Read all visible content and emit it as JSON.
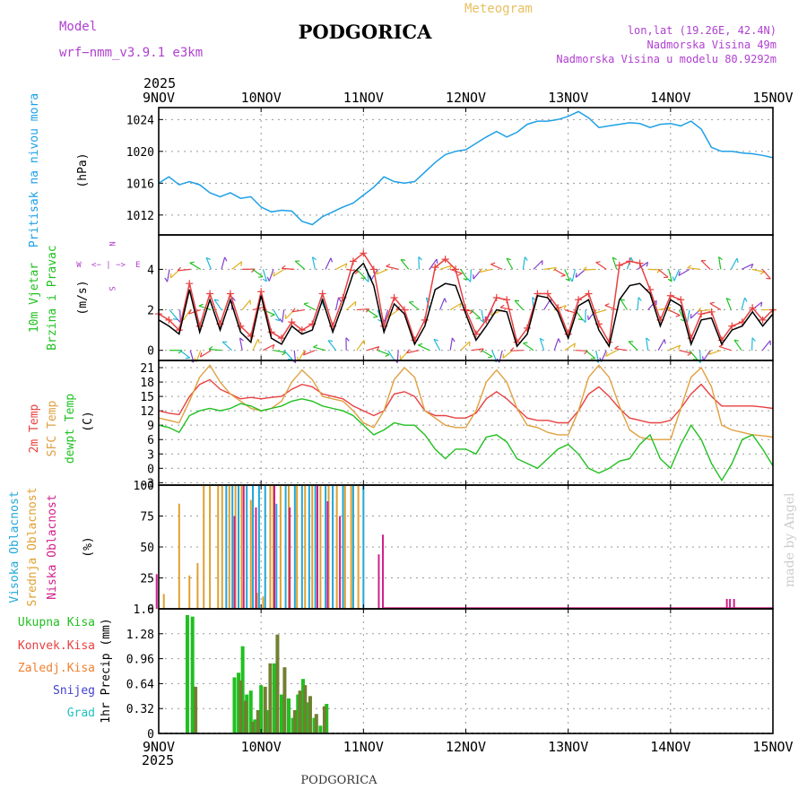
{
  "header": {
    "model_label": "Model",
    "model_name": "wrf−nmm_v3.9.1  e3km",
    "title": "PODGORICA",
    "meteogram_label": "Meteogram",
    "lonlat": "lon,lat (19.26E, 42.4N)",
    "elevation": "Nadmorska Visina 49m",
    "model_elevation": "Nadmorska Visina u modelu 80.9292m",
    "year_top": "2025",
    "year_bottom": "2025",
    "footer_title": "PODGORICA",
    "watermark": "made by Angel"
  },
  "panel_labels": {
    "pressure": {
      "name": "Pritisak na nivou mora",
      "unit": "(hPa)"
    },
    "wind": {
      "name1": "10m Vjetar",
      "name2": "Brzina i Pravac",
      "unit": "(m/s)",
      "compass": {
        "n": "N",
        "e": "E",
        "w": "W",
        "s": "S",
        "arrows": "<− | −>"
      }
    },
    "temp": {
      "l1": "2m Temp",
      "l2": "SFC Temp",
      "l3": "dewpt Temp",
      "unit": "(C)"
    },
    "cloud": {
      "l1": "Visoka Oblacnost",
      "l2": "Srednja Oblacnost",
      "l3": "Niska Oblacnost",
      "unit": "(%)"
    },
    "precip": {
      "l1": "Ukupna Kisa",
      "l2": "Konvek.Kisa",
      "l3": "Zaledj.Kisa",
      "l4": "Snijeg",
      "l5": "Grad",
      "unit": "1hr Precip (mm)"
    }
  },
  "colors": {
    "pressure": "#1ea0e6",
    "wind_black": "#000000",
    "wind_red": "#e84040",
    "t2m": "#e84040",
    "sfc": "#e0a040",
    "dewpt": "#20c020",
    "cl_high": "#20a8d8",
    "cl_mid": "#e0a030",
    "cl_low": "#d0208a",
    "total": "#20c020",
    "convective": "#e84040",
    "freezing": "#f08030",
    "snow": "#4040d0",
    "hail": "#20c0c0",
    "purple": "#b040d0",
    "gold": "#e8c060"
  },
  "chart_data": [
    {
      "type": "line",
      "id": "pressure",
      "ylabel": "(hPa)",
      "ylim": [
        1009.5,
        1025.5
      ],
      "yticks": [
        1012,
        1016,
        1020,
        1024
      ],
      "xticks": [
        "9NOV",
        "10NOV",
        "11NOV",
        "12NOV",
        "13NOV",
        "14NOV",
        "15NOV"
      ],
      "x": [
        0,
        0.1,
        0.2,
        0.3,
        0.4,
        0.5,
        0.6,
        0.7,
        0.8,
        0.9,
        1.0,
        1.1,
        1.2,
        1.3,
        1.4,
        1.5,
        1.6,
        1.7,
        1.8,
        1.9,
        2.0,
        2.1,
        2.2,
        2.3,
        2.4,
        2.5,
        2.6,
        2.7,
        2.8,
        2.9,
        3.0,
        3.1,
        3.2,
        3.3,
        3.4,
        3.5,
        3.6,
        3.7,
        3.8,
        3.9,
        4.0,
        4.1,
        4.2,
        4.3,
        4.4,
        4.5,
        4.6,
        4.7,
        4.8,
        4.9,
        5.0,
        5.1,
        5.2,
        5.3,
        5.4,
        5.5,
        5.6,
        5.7,
        5.8,
        5.9,
        6.0
      ],
      "values": [
        1016.0,
        1016.8,
        1015.8,
        1016.2,
        1015.8,
        1014.8,
        1014.3,
        1014.8,
        1014.1,
        1014.3,
        1013.0,
        1012.4,
        1012.6,
        1012.5,
        1011.2,
        1010.8,
        1011.8,
        1012.4,
        1013.0,
        1013.5,
        1014.5,
        1015.5,
        1016.8,
        1016.2,
        1016.0,
        1016.2,
        1017.4,
        1018.6,
        1019.6,
        1020.0,
        1020.2,
        1021.0,
        1021.8,
        1022.5,
        1021.8,
        1022.4,
        1023.4,
        1023.8,
        1023.8,
        1024.0,
        1024.4,
        1025.0,
        1024.2,
        1023.0,
        1023.2,
        1023.4,
        1023.6,
        1023.5,
        1023.0,
        1023.4,
        1023.5,
        1023.2,
        1023.8,
        1022.8,
        1020.5,
        1020.0,
        1020.0,
        1019.8,
        1019.7,
        1019.5,
        1019.2
      ]
    },
    {
      "type": "line",
      "id": "wind",
      "ylabel": "(m/s)",
      "ylim": [
        -0.5,
        5.7
      ],
      "yticks": [
        0,
        2,
        4
      ],
      "xticks": [
        "9NOV",
        "10NOV",
        "11NOV",
        "12NOV",
        "13NOV",
        "14NOV",
        "15NOV"
      ],
      "x": [
        0,
        0.1,
        0.2,
        0.3,
        0.4,
        0.5,
        0.6,
        0.7,
        0.8,
        0.9,
        1.0,
        1.1,
        1.2,
        1.3,
        1.4,
        1.5,
        1.6,
        1.7,
        1.8,
        1.9,
        2.0,
        2.1,
        2.2,
        2.3,
        2.4,
        2.5,
        2.6,
        2.7,
        2.8,
        2.9,
        3.0,
        3.1,
        3.2,
        3.3,
        3.4,
        3.5,
        3.6,
        3.7,
        3.8,
        3.9,
        4.0,
        4.1,
        4.2,
        4.3,
        4.4,
        4.5,
        4.6,
        4.7,
        4.8,
        4.9,
        5.0,
        5.1,
        5.2,
        5.3,
        5.4,
        5.5,
        5.6,
        5.7,
        5.8,
        5.9,
        6.0
      ],
      "series": [
        {
          "name": "mean",
          "values": [
            1.5,
            1.2,
            0.8,
            3.0,
            0.9,
            2.5,
            1.0,
            2.5,
            0.9,
            0.4,
            2.7,
            0.6,
            0.3,
            1.2,
            0.8,
            1.0,
            2.5,
            0.9,
            2.3,
            3.8,
            4.3,
            3.2,
            0.9,
            2.3,
            1.8,
            0.3,
            1.2,
            3.0,
            3.3,
            3.2,
            1.8,
            0.5,
            1.2,
            2.0,
            1.9,
            0.2,
            0.8,
            2.7,
            2.6,
            1.9,
            0.6,
            2.2,
            2.5,
            1.0,
            0.2,
            2.5,
            3.2,
            3.3,
            2.8,
            1.2,
            2.5,
            2.2,
            0.3,
            1.5,
            1.6,
            0.3,
            1.0,
            1.2,
            1.9,
            1.2,
            1.8
          ]
        },
        {
          "name": "gust",
          "values": [
            1.8,
            1.5,
            1.0,
            3.3,
            1.2,
            2.8,
            1.3,
            2.8,
            1.2,
            0.7,
            2.9,
            0.9,
            0.6,
            1.4,
            1.0,
            1.3,
            2.8,
            1.2,
            2.6,
            4.4,
            4.8,
            4.0,
            1.2,
            2.6,
            2.0,
            0.5,
            1.5,
            4.1,
            4.5,
            4.0,
            2.0,
            0.8,
            1.5,
            2.6,
            2.5,
            0.4,
            1.1,
            2.8,
            2.8,
            2.1,
            0.8,
            2.5,
            2.8,
            1.3,
            0.4,
            4.2,
            4.4,
            4.3,
            3.0,
            1.5,
            2.7,
            2.5,
            0.6,
            1.8,
            1.9,
            0.5,
            1.2,
            1.4,
            2.1,
            1.5,
            2.0
          ]
        }
      ]
    },
    {
      "type": "line",
      "id": "temperature",
      "ylabel": "(C)",
      "ylim": [
        -3.5,
        22.5
      ],
      "yticks": [
        -3,
        0,
        3,
        6,
        9,
        12,
        15,
        18,
        21
      ],
      "xticks": [
        "9NOV",
        "10NOV",
        "11NOV",
        "12NOV",
        "13NOV",
        "14NOV",
        "15NOV"
      ],
      "x": [
        0,
        0.1,
        0.2,
        0.3,
        0.4,
        0.5,
        0.6,
        0.7,
        0.8,
        0.9,
        1.0,
        1.1,
        1.2,
        1.3,
        1.4,
        1.5,
        1.6,
        1.7,
        1.8,
        1.9,
        2.0,
        2.1,
        2.2,
        2.3,
        2.4,
        2.5,
        2.6,
        2.7,
        2.8,
        2.9,
        3.0,
        3.1,
        3.2,
        3.3,
        3.4,
        3.5,
        3.6,
        3.7,
        3.8,
        3.9,
        4.0,
        4.1,
        4.2,
        4.3,
        4.4,
        4.5,
        4.6,
        4.7,
        4.8,
        4.9,
        5.0,
        5.1,
        5.2,
        5.3,
        5.4,
        5.5,
        5.6,
        5.7,
        5.8,
        5.9,
        6.0
      ],
      "series": [
        {
          "name": "2m Temp",
          "values": [
            12.0,
            11.5,
            11.2,
            15.0,
            17.5,
            18.5,
            16.5,
            15.5,
            14.5,
            14.8,
            14.5,
            14.8,
            15.0,
            16.5,
            17.5,
            17.0,
            15.5,
            15.0,
            14.5,
            13.0,
            12.0,
            11.0,
            12.0,
            15.5,
            16.0,
            15.0,
            12.0,
            11.0,
            11.0,
            10.5,
            10.5,
            11.5,
            14.5,
            16.0,
            14.5,
            12.5,
            10.5,
            10.0,
            10.0,
            9.5,
            9.5,
            12.0,
            15.5,
            17.0,
            15.0,
            12.5,
            10.5,
            10.0,
            9.5,
            9.5,
            10.0,
            12.5,
            15.5,
            17.5,
            15.0,
            13.0,
            13.0,
            13.0,
            13.0,
            12.8,
            12.5
          ]
        },
        {
          "name": "SFC Temp",
          "values": [
            10.5,
            10.0,
            9.5,
            14.0,
            19.0,
            21.5,
            18.0,
            15.5,
            14.0,
            12.5,
            12.0,
            12.5,
            14.0,
            18.0,
            20.5,
            18.5,
            15.0,
            14.5,
            14.0,
            12.0,
            9.5,
            8.5,
            12.0,
            18.5,
            21.0,
            19.0,
            12.0,
            10.5,
            9.0,
            8.5,
            8.5,
            12.0,
            18.0,
            20.5,
            18.0,
            12.5,
            9.0,
            8.5,
            7.5,
            7.0,
            7.0,
            12.0,
            19.0,
            21.5,
            19.0,
            13.0,
            8.0,
            6.5,
            6.0,
            6.0,
            6.0,
            12.5,
            19.0,
            21.0,
            17.0,
            9.0,
            8.0,
            7.5,
            7.0,
            6.8,
            6.5
          ]
        },
        {
          "name": "dewpt Temp",
          "values": [
            9.0,
            8.5,
            7.5,
            11.0,
            12.0,
            12.5,
            12.0,
            12.5,
            13.5,
            13.0,
            12.0,
            12.5,
            13.0,
            14.0,
            14.5,
            14.0,
            13.0,
            12.5,
            12.0,
            11.0,
            9.0,
            7.0,
            8.0,
            9.5,
            9.0,
            9.0,
            7.0,
            4.0,
            2.0,
            4.0,
            4.0,
            3.0,
            6.5,
            7.0,
            5.5,
            2.0,
            1.0,
            0.0,
            2.0,
            4.0,
            5.0,
            3.0,
            0.0,
            -1.0,
            0.0,
            1.5,
            2.0,
            5.0,
            7.0,
            2.0,
            0.0,
            5.0,
            9.0,
            6.0,
            1.0,
            -2.5,
            1.0,
            6.0,
            7.0,
            4.0,
            0.5
          ]
        }
      ]
    },
    {
      "type": "bar",
      "id": "clouds",
      "ylabel": "(%)",
      "ylim": [
        0,
        100
      ],
      "yticks": [
        0,
        25,
        50,
        75,
        100
      ],
      "xticks": [
        "9NOV",
        "10NOV",
        "11NOV",
        "12NOV",
        "13NOV",
        "14NOV",
        "15NOV"
      ],
      "series": [
        {
          "name": "Visoka Oblacnost",
          "x": [
            0.66,
            0.72,
            0.78,
            0.86,
            0.92,
            0.98,
            1.04,
            1.15,
            1.24,
            1.33,
            1.4,
            1.47,
            1.53,
            1.63,
            1.7,
            1.8,
            1.9,
            2.0
          ],
          "values": [
            100,
            100,
            100,
            100,
            100,
            100,
            100,
            85,
            100,
            100,
            100,
            100,
            100,
            100,
            100,
            100,
            100,
            100
          ]
        },
        {
          "name": "Srednja Oblacnost",
          "x": [
            0.05,
            0.2,
            0.3,
            0.38,
            0.44,
            0.5,
            0.58,
            0.62,
            0.69,
            0.75,
            0.81,
            0.9,
            0.96,
            1.02,
            1.09,
            1.12,
            1.19,
            1.27,
            1.35,
            1.43,
            1.5,
            1.58,
            1.66,
            1.74,
            1.82,
            1.88,
            1.95
          ],
          "values": [
            12,
            85,
            27,
            37,
            100,
            100,
            100,
            100,
            100,
            100,
            100,
            88,
            13,
            10,
            100,
            100,
            100,
            100,
            100,
            100,
            100,
            100,
            100,
            100,
            100,
            100,
            100
          ]
        },
        {
          "name": "Niska Oblacnost",
          "x": [
            -0.02,
            0.74,
            0.83,
            0.95,
            1.13,
            1.28,
            1.55,
            1.65,
            1.77,
            2.15,
            2.19,
            5.55,
            5.58,
            5.62
          ],
          "values": [
            28,
            75,
            100,
            82,
            100,
            82,
            100,
            87,
            75,
            44,
            60,
            8,
            8,
            8
          ]
        }
      ]
    },
    {
      "type": "bar",
      "id": "precipitation",
      "ylabel": "1hr Precip (mm)",
      "ylim": [
        0,
        1.6
      ],
      "yticks": [
        0,
        0.32,
        0.64,
        0.96,
        1.28,
        1.6
      ],
      "xticks": [
        "9NOV",
        "10NOV",
        "11NOV",
        "12NOV",
        "13NOV",
        "14NOV",
        "15NOV"
      ],
      "series": [
        {
          "name": "Ukupna Kisa",
          "x": [
            0.28,
            0.33,
            0.74,
            0.78,
            0.82,
            0.86,
            0.9,
            0.94,
            1.0,
            1.06,
            1.13,
            1.2,
            1.27,
            1.31,
            1.36,
            1.41,
            1.46,
            1.52,
            1.58,
            1.64
          ],
          "values": [
            1.52,
            1.5,
            0.72,
            0.78,
            1.12,
            0.5,
            0.55,
            0.18,
            0.62,
            0.3,
            0.9,
            0.5,
            0.45,
            0.2,
            0.5,
            0.7,
            0.4,
            0.2,
            0.1,
            0.38
          ]
        },
        {
          "name": "Konvek.Kisa",
          "x": [
            0.36,
            0.8,
            0.85,
            0.92,
            0.97,
            1.04,
            1.09,
            1.16,
            1.23,
            1.33,
            1.38,
            1.43,
            1.48,
            1.54,
            1.62
          ],
          "values": [
            0.6,
            0.68,
            0.42,
            0.15,
            0.3,
            0.6,
            0.9,
            1.27,
            0.85,
            0.3,
            0.55,
            0.62,
            0.48,
            0.25,
            0.35
          ]
        }
      ]
    }
  ]
}
